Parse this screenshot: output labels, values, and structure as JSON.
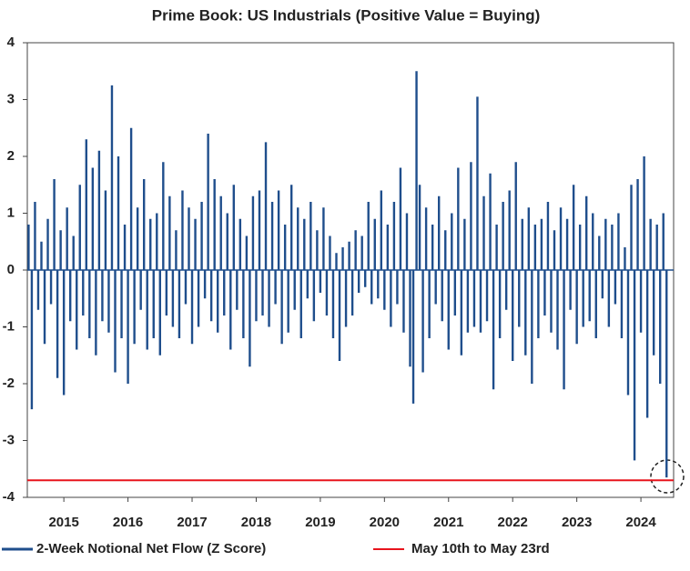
{
  "chart_data": {
    "type": "bar",
    "title": "Prime Book: US Industrials (Positive Value = Buying)",
    "series": [
      {
        "name": "2-Week Notional Net Flow (Z Score)",
        "color": "#1f4e8c",
        "x": [
          2014.45,
          2014.5,
          2014.55,
          2014.6,
          2014.65,
          2014.7,
          2014.75,
          2014.8,
          2014.85,
          2014.9,
          2014.95,
          2015.0,
          2015.05,
          2015.1,
          2015.15,
          2015.2,
          2015.25,
          2015.3,
          2015.35,
          2015.4,
          2015.45,
          2015.5,
          2015.55,
          2015.6,
          2015.65,
          2015.7,
          2015.75,
          2015.8,
          2015.85,
          2015.9,
          2015.95,
          2016.0,
          2016.05,
          2016.1,
          2016.15,
          2016.2,
          2016.25,
          2016.3,
          2016.35,
          2016.4,
          2016.45,
          2016.5,
          2016.55,
          2016.6,
          2016.65,
          2016.7,
          2016.75,
          2016.8,
          2016.85,
          2016.9,
          2016.95,
          2017.0,
          2017.05,
          2017.1,
          2017.15,
          2017.2,
          2017.25,
          2017.3,
          2017.35,
          2017.4,
          2017.45,
          2017.5,
          2017.55,
          2017.6,
          2017.65,
          2017.7,
          2017.75,
          2017.8,
          2017.85,
          2017.9,
          2017.95,
          2018.0,
          2018.05,
          2018.1,
          2018.15,
          2018.2,
          2018.25,
          2018.3,
          2018.35,
          2018.4,
          2018.45,
          2018.5,
          2018.55,
          2018.6,
          2018.65,
          2018.7,
          2018.75,
          2018.8,
          2018.85,
          2018.9,
          2018.95,
          2019.0,
          2019.05,
          2019.1,
          2019.15,
          2019.2,
          2019.25,
          2019.3,
          2019.35,
          2019.4,
          2019.45,
          2019.5,
          2019.55,
          2019.6,
          2019.65,
          2019.7,
          2019.75,
          2019.8,
          2019.85,
          2019.9,
          2019.95,
          2020.0,
          2020.05,
          2020.1,
          2020.15,
          2020.2,
          2020.25,
          2020.3,
          2020.35,
          2020.4,
          2020.45,
          2020.5,
          2020.55,
          2020.6,
          2020.65,
          2020.7,
          2020.75,
          2020.8,
          2020.85,
          2020.9,
          2020.95,
          2021.0,
          2021.05,
          2021.1,
          2021.15,
          2021.2,
          2021.25,
          2021.3,
          2021.35,
          2021.4,
          2021.45,
          2021.5,
          2021.55,
          2021.6,
          2021.65,
          2021.7,
          2021.75,
          2021.8,
          2021.85,
          2021.9,
          2021.95,
          2022.0,
          2022.05,
          2022.1,
          2022.15,
          2022.2,
          2022.25,
          2022.3,
          2022.35,
          2022.4,
          2022.45,
          2022.5,
          2022.55,
          2022.6,
          2022.65,
          2022.7,
          2022.75,
          2022.8,
          2022.85,
          2022.9,
          2022.95,
          2023.0,
          2023.05,
          2023.1,
          2023.15,
          2023.2,
          2023.25,
          2023.3,
          2023.35,
          2023.4,
          2023.45,
          2023.5,
          2023.55,
          2023.6,
          2023.65,
          2023.7,
          2023.75,
          2023.8,
          2023.85,
          2023.9,
          2023.95,
          2024.0,
          2024.05,
          2024.1,
          2024.15,
          2024.2,
          2024.25,
          2024.3,
          2024.35,
          2024.4
        ],
        "values": [
          0.8,
          -2.45,
          1.2,
          -0.7,
          0.5,
          -1.3,
          0.9,
          -0.6,
          1.6,
          -1.9,
          0.7,
          -2.2,
          1.1,
          -0.9,
          0.6,
          -1.4,
          1.5,
          -0.8,
          2.3,
          -1.2,
          1.8,
          -1.5,
          2.1,
          -0.9,
          1.4,
          -1.1,
          3.25,
          -1.8,
          2.0,
          -1.2,
          0.8,
          -2.0,
          2.5,
          -1.3,
          1.1,
          -0.7,
          1.6,
          -1.4,
          0.9,
          -1.2,
          1.0,
          -1.5,
          1.9,
          -0.8,
          1.3,
          -1.0,
          0.7,
          -1.2,
          1.4,
          -0.6,
          1.1,
          -1.3,
          0.9,
          -1.0,
          1.2,
          -0.5,
          2.4,
          -0.9,
          1.6,
          -1.1,
          1.3,
          -0.8,
          1.0,
          -1.4,
          1.5,
          -0.7,
          0.9,
          -1.2,
          0.6,
          -1.7,
          1.3,
          -0.9,
          1.4,
          -0.8,
          2.25,
          -1.0,
          1.2,
          -0.6,
          1.4,
          -1.3,
          0.8,
          -1.1,
          1.5,
          -0.7,
          1.1,
          -1.2,
          0.9,
          -0.5,
          1.2,
          -0.9,
          0.7,
          -0.4,
          1.1,
          -0.8,
          0.6,
          -1.2,
          0.3,
          -1.6,
          0.4,
          -1.0,
          0.5,
          -0.8,
          0.7,
          -0.4,
          0.6,
          -0.3,
          1.2,
          -0.6,
          0.9,
          -0.5,
          1.4,
          -0.7,
          0.8,
          -1.0,
          1.2,
          -0.6,
          1.8,
          -1.1,
          1.0,
          -1.7,
          -2.35,
          3.5,
          1.5,
          -1.8,
          1.1,
          -1.2,
          0.8,
          -0.6,
          1.3,
          -0.9,
          0.7,
          -1.4,
          1.0,
          -0.8,
          1.8,
          -1.5,
          0.9,
          -1.1,
          1.9,
          -1.0,
          3.05,
          -1.1,
          1.3,
          -0.9,
          1.7,
          -2.1,
          0.8,
          -1.2,
          1.2,
          -0.7,
          1.4,
          -1.6,
          1.9,
          -1.0,
          0.9,
          -1.5,
          1.1,
          -2.0,
          0.8,
          -1.2,
          0.9,
          -0.8,
          1.2,
          -1.1,
          0.7,
          -1.4,
          1.1,
          -2.1,
          0.9,
          -0.7,
          1.5,
          -1.3,
          0.8,
          -1.0,
          1.3,
          -0.9,
          1.0,
          -1.2,
          0.6,
          -0.5,
          0.9,
          -1.0,
          0.8,
          -0.6,
          1.0,
          -1.2,
          0.4,
          -2.2,
          1.5,
          -3.35,
          1.6,
          -1.1,
          2.0,
          -2.6,
          0.9,
          -1.5,
          0.8,
          -2.0,
          1.0,
          -3.65
        ]
      }
    ],
    "reference": {
      "name": "May 10th to May 23rd",
      "value": -3.7,
      "color": "#e8141c"
    },
    "xlim": [
      2014.43,
      2024.51
    ],
    "xticks": [
      2015,
      2016,
      2017,
      2018,
      2019,
      2020,
      2021,
      2022,
      2023,
      2024
    ],
    "ylim": [
      -4,
      4
    ],
    "yticks": [
      -4,
      -3,
      -2,
      -1,
      0,
      1,
      2,
      3,
      4
    ]
  }
}
